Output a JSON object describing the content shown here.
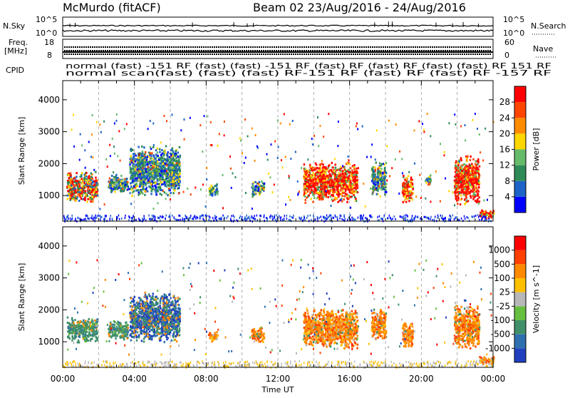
{
  "header": {
    "title": "McMurdo (fitACF)",
    "beam_label": "Beam 02 23/Aug/2016 - 24/Aug/2016"
  },
  "top_panels": {
    "nsky_label": "N.Sky",
    "nsearch_label": "N.Search",
    "freq_label": "Freq.",
    "freq_unit": "[MHz]",
    "nave_label": "Nave",
    "cpid_label": "CPID",
    "nsky_ticks": [
      "10^5",
      "10^0"
    ],
    "nsearch_ticks": [
      "10^5",
      "10^0"
    ],
    "freq_ticks": [
      "18",
      "8"
    ],
    "nave_ticks": [
      "60",
      "0"
    ],
    "cpid_row1": "normal (fast) -151 RF (fast) (fast) -151 RF (fast) RF (fast) RF (fast) (fast) RF 151 RF",
    "cpid_row2": "normal scan(fast) (fast) (fast) RF-151 RF (fast) RF (fast) RF -157 RF"
  },
  "chart_data": [
    {
      "type": "heatmap",
      "title": "",
      "xlabel": "",
      "ylabel": "Slant Range [km]",
      "xlim": [
        0,
        24
      ],
      "ylim": [
        200,
        4600
      ],
      "yticks": [
        "4000",
        "3000",
        "2000",
        "1000"
      ],
      "colorbar": {
        "label": "Power [dB]",
        "ticks": [
          "28",
          "24",
          "20",
          "16",
          "12",
          "8",
          "4"
        ],
        "colors": [
          "#0000ff",
          "#1e63c8",
          "#2e8b57",
          "#66bb6a",
          "#ffd700",
          "#ff8c00",
          "#ff4500",
          "#ff0000"
        ]
      },
      "blobs": [
        {
          "t": 0.2,
          "t2": 1.9,
          "r1": 800,
          "r2": 1800,
          "dominant": "red-green"
        },
        {
          "t": 2.5,
          "t2": 3.6,
          "r1": 1100,
          "r2": 1700,
          "dominant": "green"
        },
        {
          "t": 3.7,
          "t2": 6.5,
          "r1": 1000,
          "r2": 2600,
          "dominant": "green"
        },
        {
          "t": 8.1,
          "t2": 8.6,
          "r1": 1000,
          "r2": 1400,
          "dominant": "green"
        },
        {
          "t": 10.5,
          "t2": 11.2,
          "r1": 1000,
          "r2": 1500,
          "dominant": "green"
        },
        {
          "t": 13.4,
          "t2": 16.4,
          "r1": 800,
          "r2": 2100,
          "dominant": "red"
        },
        {
          "t": 17.2,
          "t2": 18.0,
          "r1": 1000,
          "r2": 2100,
          "dominant": "green"
        },
        {
          "t": 18.9,
          "t2": 19.5,
          "r1": 800,
          "r2": 1700,
          "dominant": "red"
        },
        {
          "t": 20.2,
          "t2": 20.5,
          "r1": 1300,
          "r2": 1700,
          "dominant": "green"
        },
        {
          "t": 21.8,
          "t2": 23.2,
          "r1": 700,
          "r2": 2300,
          "dominant": "red"
        },
        {
          "t": 23.2,
          "t2": 24.0,
          "r1": 300,
          "r2": 600,
          "dominant": "red"
        }
      ]
    },
    {
      "type": "heatmap",
      "title": "",
      "xlabel": "Time UT",
      "ylabel": "Slant Range [km]",
      "xlim": [
        0,
        24
      ],
      "ylim": [
        200,
        4600
      ],
      "xticks": [
        "00:00",
        "04:00",
        "08:00",
        "12:00",
        "16:00",
        "20:00",
        "00:00"
      ],
      "yticks": [
        "4000",
        "3000",
        "2000",
        "1000"
      ],
      "colorbar": {
        "label": "Velocity [m s^-1]",
        "ticks": [
          "1000",
          "500",
          "100",
          "25",
          "-25",
          "-100",
          "-500",
          "-1000"
        ],
        "colors": [
          "#2040c0",
          "#2e6fb0",
          "#3f8f6a",
          "#66c040",
          "#b8b8b8",
          "#ffc000",
          "#ff8a00",
          "#ff4000",
          "#ff0000"
        ]
      },
      "blobs": [
        {
          "t": 0.2,
          "t2": 1.9,
          "r1": 1000,
          "r2": 1800,
          "dominant": "green"
        },
        {
          "t": 2.5,
          "t2": 3.6,
          "r1": 1100,
          "r2": 1700,
          "dominant": "green"
        },
        {
          "t": 3.7,
          "t2": 6.5,
          "r1": 1000,
          "r2": 2600,
          "dominant": "blue-green"
        },
        {
          "t": 8.1,
          "t2": 8.6,
          "r1": 1000,
          "r2": 1400,
          "dominant": "orange"
        },
        {
          "t": 10.5,
          "t2": 11.2,
          "r1": 1000,
          "r2": 1500,
          "dominant": "orange"
        },
        {
          "t": 13.4,
          "t2": 16.4,
          "r1": 800,
          "r2": 2100,
          "dominant": "orange"
        },
        {
          "t": 17.2,
          "t2": 18.0,
          "r1": 1000,
          "r2": 2100,
          "dominant": "orange"
        },
        {
          "t": 18.9,
          "t2": 19.5,
          "r1": 800,
          "r2": 1700,
          "dominant": "orange"
        },
        {
          "t": 21.8,
          "t2": 23.2,
          "r1": 800,
          "r2": 2200,
          "dominant": "orange"
        },
        {
          "t": 23.2,
          "t2": 24.0,
          "r1": 300,
          "r2": 600,
          "dominant": "orange"
        }
      ]
    }
  ]
}
